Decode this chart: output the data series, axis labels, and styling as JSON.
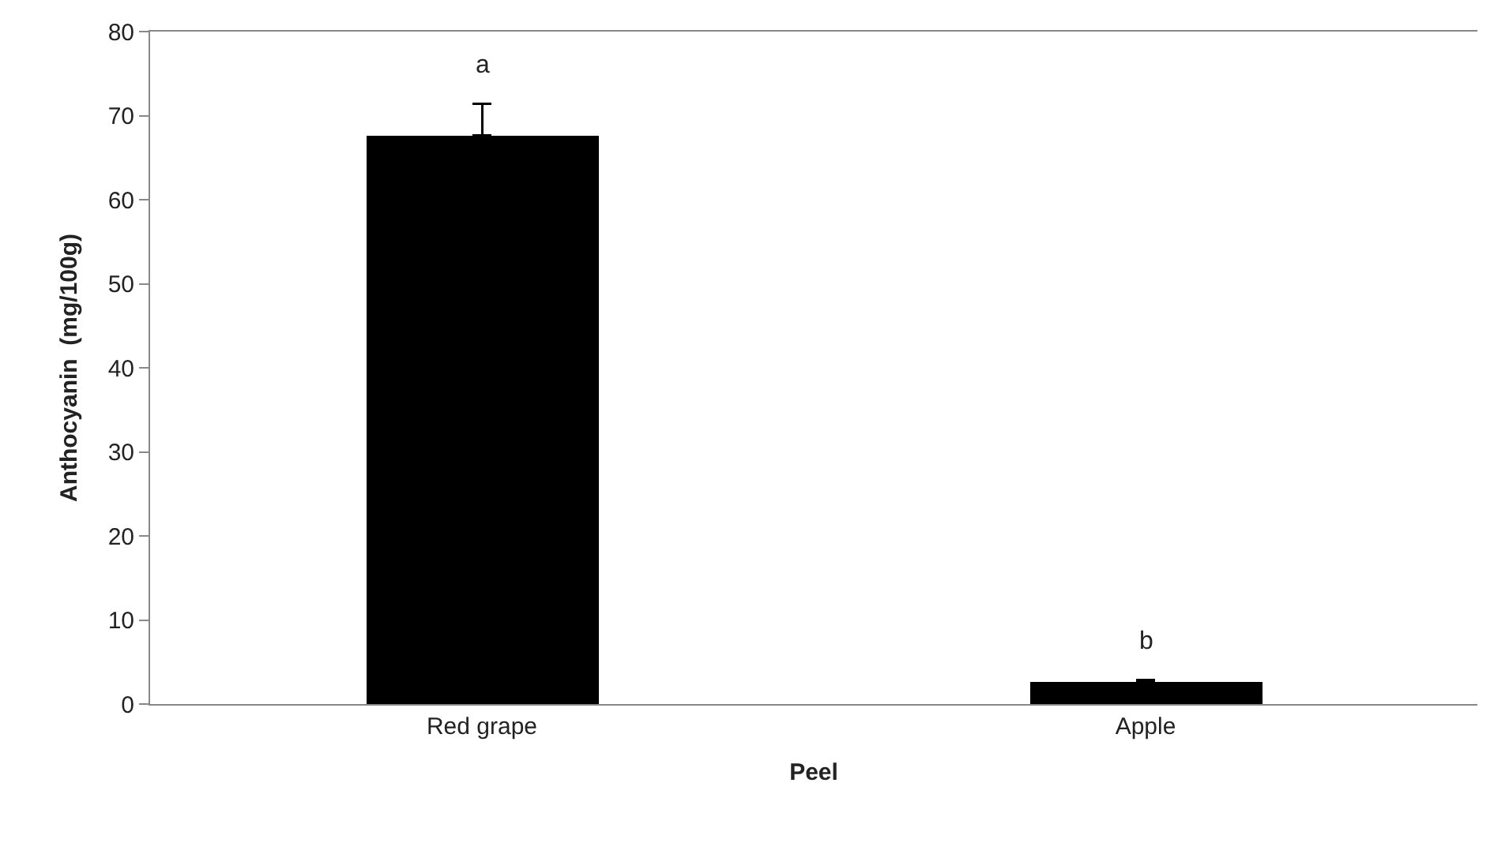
{
  "chart_data": {
    "type": "bar",
    "xlabel": "Peel",
    "ylabel": "Anthocyanin  (mg/100g)",
    "categories": [
      "Red grape",
      "Apple"
    ],
    "series": [
      {
        "color": "#000000",
        "values": [
          67.7,
          2.6
        ],
        "errors": [
          [
            67.7,
            71.4
          ],
          [
            2.6,
            2.9
          ]
        ]
      }
    ],
    "ylim": [
      0,
      80
    ],
    "yticks": [
      0,
      10,
      20,
      30,
      40,
      50,
      60,
      70,
      80
    ],
    "annotations": [
      "a",
      "b"
    ]
  }
}
